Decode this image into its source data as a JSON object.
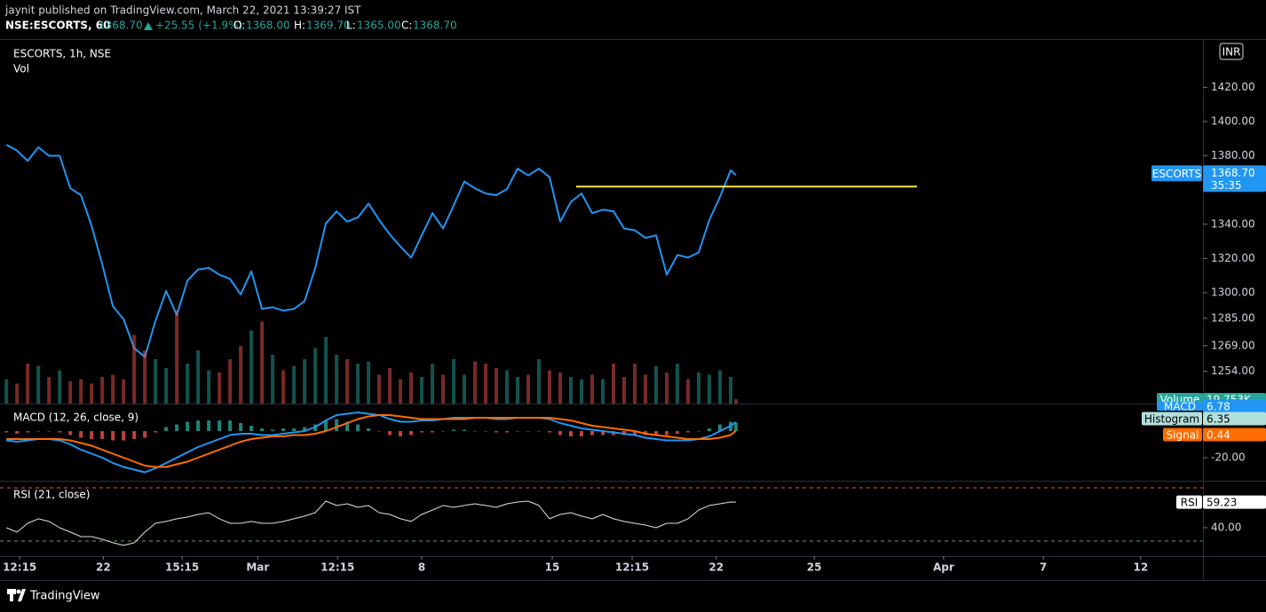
{
  "header": {
    "author_line": "jaynit published on TradingView.com, March 22, 2021 13:39:27 IST",
    "symbol": "NSE:ESCORTS, 60",
    "last": "1368.70",
    "change": "+25.55 (+1.9%)",
    "ohlc": [
      {
        "label": "O:",
        "value": "1368.00"
      },
      {
        "label": "H:",
        "value": "1369.70"
      },
      {
        "label": "L:",
        "value": "1365.00"
      },
      {
        "label": "C:",
        "value": "1368.70"
      }
    ]
  },
  "chart_data": [
    {
      "type": "line",
      "title": "ESCORTS, 1h, NSE",
      "name": "ESCORTS",
      "color": "#2196f3",
      "value_label": "1368.70",
      "countdown": "35:35",
      "currency": "INR",
      "x": [
        0,
        2,
        4,
        6,
        8,
        10,
        12,
        14,
        16,
        18,
        20,
        22,
        24,
        26,
        28,
        30,
        32,
        34,
        36,
        38,
        40,
        42,
        44,
        46,
        48,
        50,
        52,
        54,
        56,
        58,
        60,
        62,
        64,
        66,
        68,
        70,
        72,
        74,
        76,
        78,
        80,
        82,
        84,
        86,
        88,
        90,
        92,
        94,
        96,
        98,
        100,
        102,
        104,
        106,
        108,
        110,
        112,
        114,
        116,
        118,
        120,
        122,
        124,
        126,
        128,
        130,
        132,
        134,
        136,
        137
      ],
      "values": [
        1386.5,
        1383,
        1377,
        1385,
        1380,
        1380,
        1361,
        1357,
        1339,
        1316.5,
        1292,
        1284.5,
        1267.5,
        1262.5,
        1283.5,
        1301,
        1287,
        1307,
        1313.5,
        1314.5,
        1310.5,
        1308,
        1299,
        1312.5,
        1290.5,
        1291.5,
        1289.5,
        1290.5,
        1295,
        1314.5,
        1340.5,
        1347.5,
        1341.5,
        1344,
        1352,
        1342.5,
        1334,
        1327,
        1320.5,
        1333.5,
        1346.5,
        1337.5,
        1351,
        1365,
        1361,
        1358,
        1357,
        1360.5,
        1372.5,
        1368.5,
        1372.5,
        1367.5,
        1341.5,
        1353,
        1358,
        1346.5,
        1348.5,
        1347.5,
        1337.5,
        1336.5,
        1332,
        1333.5,
        1310.5,
        1322,
        1320.5,
        1323.5,
        1342.5,
        1356,
        1371.5,
        1368.7
      ],
      "xlim": [
        -1.2,
        224.7
      ],
      "xticks": [
        {
          "value": 2.5,
          "label": "12:15"
        },
        {
          "value": 18.2,
          "label": "22"
        },
        {
          "value": 33,
          "label": "15:15"
        },
        {
          "value": 47.2,
          "label": "Mar"
        },
        {
          "value": 62.2,
          "label": "12:15"
        },
        {
          "value": 78,
          "label": "8"
        },
        {
          "value": 102.5,
          "label": "15"
        },
        {
          "value": 117.5,
          "label": "12:15"
        },
        {
          "value": 133.3,
          "label": "22"
        },
        {
          "value": 151.7,
          "label": "25"
        },
        {
          "value": 176,
          "label": "Apr"
        },
        {
          "value": 194.7,
          "label": "7"
        },
        {
          "value": 213,
          "label": "12"
        }
      ],
      "ylim": [
        1235.2,
        1447.7
      ],
      "yticks": [
        {
          "value": 1420,
          "label": "1420.00"
        },
        {
          "value": 1400,
          "label": "1400.00"
        },
        {
          "value": 1380,
          "label": "1380.00"
        },
        {
          "value": 1340,
          "label": "1340.00"
        },
        {
          "value": 1320,
          "label": "1320.00"
        },
        {
          "value": 1300,
          "label": "1300.00"
        },
        {
          "value": 1285,
          "label": "1285.00"
        },
        {
          "value": 1269,
          "label": "1269.00"
        },
        {
          "value": 1254,
          "label": "1254.00"
        }
      ],
      "trendline": {
        "x": [
          107,
          171
        ],
        "value": 1362,
        "color": "#ffeb3b"
      }
    },
    {
      "type": "volume",
      "title": "Vol",
      "name": "Volume",
      "value_label": "19.753K",
      "up_color": "#26a69a",
      "down_color": "#ef5350",
      "ylim": [
        0,
        440
      ],
      "values": [
        110,
        90,
        180,
        170,
        120,
        150,
        100,
        110,
        90,
        120,
        130,
        110,
        310,
        240,
        200,
        160,
        420,
        180,
        240,
        150,
        140,
        200,
        260,
        330,
        370,
        220,
        150,
        170,
        200,
        250,
        300,
        220,
        200,
        180,
        190,
        130,
        160,
        110,
        140,
        120,
        180,
        130,
        200,
        130,
        190,
        180,
        160,
        150,
        120,
        130,
        200,
        150,
        140,
        120,
        110,
        130,
        110,
        180,
        120,
        180,
        130,
        170,
        140,
        180,
        110,
        140,
        130,
        150,
        120,
        19.753
      ]
    },
    {
      "type": "macd",
      "title": "MACD (12, 26, close, 9)",
      "ylim": [
        -36,
        18.7
      ],
      "yticks": [
        {
          "value": -20,
          "label": "-20.00"
        }
      ],
      "series": [
        {
          "name": "MACD",
          "color": "#2196f3",
          "value_label": "6.78",
          "values": [
            -7,
            -8,
            -7,
            -6,
            -6,
            -7,
            -10,
            -14,
            -17,
            -20,
            -24,
            -27,
            -29,
            -31,
            -28,
            -24,
            -20,
            -16,
            -12,
            -9,
            -6,
            -3,
            -2,
            -2,
            -3,
            -3,
            -2,
            -1,
            0,
            3,
            8,
            12,
            13,
            14,
            13,
            12,
            9,
            7,
            7,
            8,
            8,
            9,
            10,
            10,
            10,
            10,
            9,
            9,
            10,
            10,
            10,
            9,
            6,
            4,
            2,
            1,
            0,
            -1,
            -2,
            -3,
            -5,
            -6,
            -7,
            -7,
            -7,
            -6,
            -4,
            0,
            4,
            6.78
          ]
        },
        {
          "name": "Histogram",
          "color": "#26a69a",
          "label_color": "#b2dfdb",
          "negative_color": "#ef5350",
          "value_label": "6.35",
          "values": [
            -1,
            -2,
            -1,
            0,
            0,
            -1,
            -3,
            -5,
            -6,
            -6,
            -7,
            -7,
            -6,
            -5,
            -1,
            3,
            5,
            7,
            8,
            8,
            8,
            8,
            6,
            4,
            2,
            1,
            2,
            2,
            3,
            5,
            8,
            9,
            7,
            5,
            2,
            0,
            -3,
            -4,
            -3,
            -1,
            -1,
            0,
            1,
            1,
            0,
            0,
            -1,
            -1,
            0,
            0,
            0,
            -1,
            -3,
            -4,
            -4,
            -3,
            -3,
            -3,
            -3,
            -3,
            -3,
            -3,
            -3,
            -2,
            -1,
            0,
            2,
            5,
            7,
            6.35
          ]
        },
        {
          "name": "Signal",
          "color": "#ff6d00",
          "value_label": "0.44",
          "values": [
            -6,
            -6,
            -6,
            -6,
            -6,
            -6,
            -7,
            -9,
            -11,
            -14,
            -17,
            -20,
            -23,
            -26,
            -27,
            -27,
            -25,
            -23,
            -20,
            -17,
            -14,
            -11,
            -8,
            -6,
            -5,
            -4,
            -4,
            -3,
            -3,
            -2,
            0,
            3,
            6,
            9,
            11,
            12,
            12,
            11,
            10,
            9,
            9,
            9,
            9,
            9,
            10,
            10,
            10,
            10,
            10,
            10,
            10,
            10,
            9,
            8,
            6,
            4,
            3,
            2,
            1,
            0,
            -2,
            -3,
            -4,
            -5,
            -6,
            -6,
            -6,
            -5,
            -3,
            0.44
          ]
        }
      ]
    },
    {
      "type": "rsi",
      "title": "RSI (21, close)",
      "name": "RSI",
      "color": "#e0e0e0",
      "value_label": "59.23",
      "ylim": [
        20,
        73.3
      ],
      "yticks": [
        {
          "value": 40,
          "label": "40.00"
        }
      ],
      "bands": [
        {
          "value": 70,
          "color": "#ef5350"
        },
        {
          "value": 30,
          "color": "#4caf50"
        }
      ],
      "values": [
        40,
        36.7,
        43.3,
        46.7,
        44.7,
        40,
        36.7,
        33.3,
        33.3,
        31.3,
        28.7,
        26.7,
        28.7,
        36.7,
        43.3,
        44.7,
        46.7,
        48,
        50,
        51.3,
        46.7,
        43.3,
        43.3,
        44.7,
        43.3,
        43.3,
        44.7,
        46.7,
        48.7,
        51.3,
        60,
        56.7,
        58,
        55.3,
        56.7,
        51.3,
        50,
        46.7,
        44.7,
        50,
        53.3,
        56.7,
        55.3,
        56.7,
        58,
        56.7,
        55.3,
        58,
        59.3,
        60,
        56.7,
        46.7,
        50,
        51.3,
        48.7,
        46.7,
        50,
        46.7,
        44.7,
        43.3,
        42,
        40,
        43.3,
        43.3,
        46.7,
        53.3,
        56.7,
        58,
        59.3,
        59.23
      ]
    }
  ],
  "footer": {
    "brand": "TradingView"
  }
}
